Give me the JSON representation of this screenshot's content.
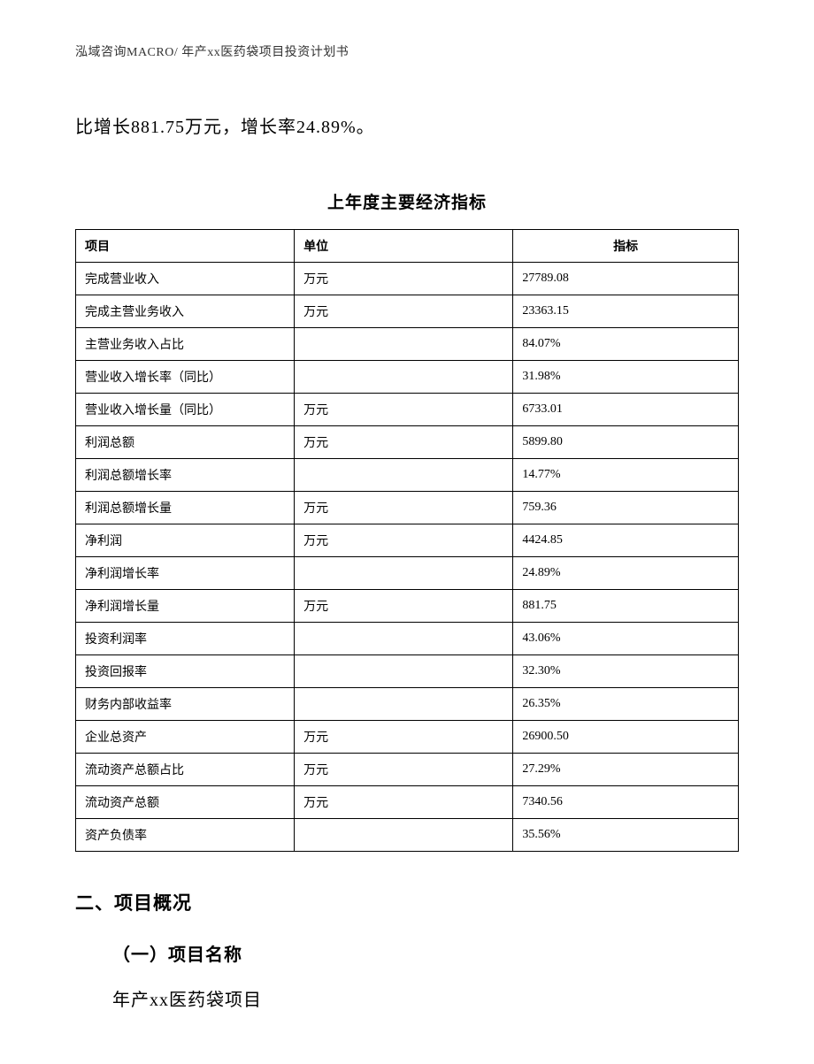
{
  "header": "泓域咨询MACRO/ 年产xx医药袋项目投资计划书",
  "body_line": "比增长881.75万元，增长率24.89%。",
  "table": {
    "title": "上年度主要经济指标",
    "columns": [
      "项目",
      "单位",
      "指标"
    ],
    "rows": [
      [
        "完成营业收入",
        "万元",
        "27789.08"
      ],
      [
        "完成主营业务收入",
        "万元",
        "23363.15"
      ],
      [
        "主营业务收入占比",
        "",
        "84.07%"
      ],
      [
        "营业收入增长率（同比）",
        "",
        "31.98%"
      ],
      [
        "营业收入增长量（同比）",
        "万元",
        "6733.01"
      ],
      [
        "利润总额",
        "万元",
        "5899.80"
      ],
      [
        "利润总额增长率",
        "",
        "14.77%"
      ],
      [
        "利润总额增长量",
        "万元",
        "759.36"
      ],
      [
        "净利润",
        "万元",
        "4424.85"
      ],
      [
        "净利润增长率",
        "",
        "24.89%"
      ],
      [
        "净利润增长量",
        "万元",
        "881.75"
      ],
      [
        "投资利润率",
        "",
        "43.06%"
      ],
      [
        "投资回报率",
        "",
        "32.30%"
      ],
      [
        "财务内部收益率",
        "",
        "26.35%"
      ],
      [
        "企业总资产",
        "万元",
        "26900.50"
      ],
      [
        "流动资产总额占比",
        "万元",
        "27.29%"
      ],
      [
        "流动资产总额",
        "万元",
        "7340.56"
      ],
      [
        "资产负债率",
        "",
        "35.56%"
      ]
    ]
  },
  "section2": {
    "heading": "二、项目概况",
    "sub1": {
      "heading": "（一）项目名称",
      "body": "年产xx医药袋项目"
    }
  }
}
